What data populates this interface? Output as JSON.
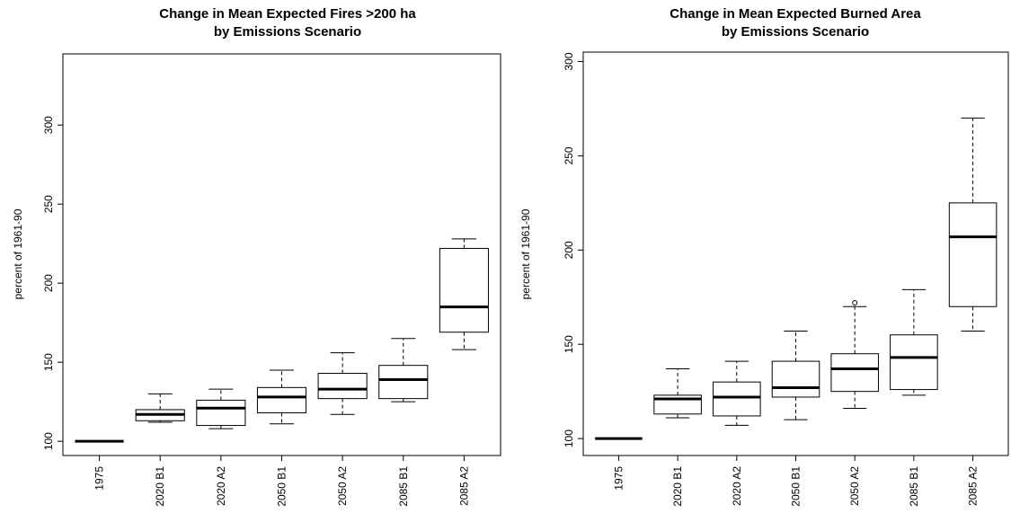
{
  "chart_data": [
    {
      "type": "boxplot",
      "title": "Change in Mean Expected Fires >200 ha",
      "subtitle": "by Emissions Scenario",
      "xlabel": "",
      "ylabel": "percent of 1961-90",
      "ylim": [
        91,
        345
      ],
      "yticks": [
        100,
        150,
        200,
        250,
        300
      ],
      "grid": false,
      "categories": [
        "1975",
        "2020 B1",
        "2020 A2",
        "2050 B1",
        "2050 A2",
        "2085 B1",
        "2085 A2"
      ],
      "boxes": [
        {
          "min": 100,
          "q1": 100,
          "median": 100,
          "q3": 100,
          "max": 100,
          "outliers": []
        },
        {
          "min": 112,
          "q1": 113,
          "median": 117,
          "q3": 120,
          "max": 130,
          "outliers": []
        },
        {
          "min": 108,
          "q1": 110,
          "median": 121,
          "q3": 126,
          "max": 133,
          "outliers": []
        },
        {
          "min": 111,
          "q1": 118,
          "median": 128,
          "q3": 134,
          "max": 145,
          "outliers": []
        },
        {
          "min": 117,
          "q1": 127,
          "median": 133,
          "q3": 143,
          "max": 156,
          "outliers": []
        },
        {
          "min": 125,
          "q1": 127,
          "median": 139,
          "q3": 148,
          "max": 165,
          "outliers": []
        },
        {
          "min": 158,
          "q1": 169,
          "median": 185,
          "q3": 222,
          "max": 228,
          "outliers": []
        }
      ]
    },
    {
      "type": "boxplot",
      "title": "Change in Mean Expected Burned Area",
      "subtitle": "by Emissions Scenario",
      "xlabel": "",
      "ylabel": "percent of 1961-90",
      "ylim": [
        91,
        305
      ],
      "yticks": [
        100,
        150,
        200,
        250,
        300
      ],
      "grid": false,
      "categories": [
        "1975",
        "2020 B1",
        "2020 A2",
        "2050 B1",
        "2050 A2",
        "2085 B1",
        "2085 A2"
      ],
      "boxes": [
        {
          "min": 100,
          "q1": 100,
          "median": 100,
          "q3": 100,
          "max": 100,
          "outliers": []
        },
        {
          "min": 111,
          "q1": 113,
          "median": 121,
          "q3": 123,
          "max": 137,
          "outliers": []
        },
        {
          "min": 107,
          "q1": 112,
          "median": 122,
          "q3": 130,
          "max": 141,
          "outliers": []
        },
        {
          "min": 110,
          "q1": 122,
          "median": 127,
          "q3": 141,
          "max": 157,
          "outliers": []
        },
        {
          "min": 116,
          "q1": 125,
          "median": 137,
          "q3": 145,
          "max": 170,
          "outliers": [
            172
          ]
        },
        {
          "min": 123,
          "q1": 126,
          "median": 143,
          "q3": 155,
          "max": 179,
          "outliers": []
        },
        {
          "min": 157,
          "q1": 170,
          "median": 207,
          "q3": 225,
          "max": 270,
          "outliers": []
        }
      ]
    }
  ]
}
